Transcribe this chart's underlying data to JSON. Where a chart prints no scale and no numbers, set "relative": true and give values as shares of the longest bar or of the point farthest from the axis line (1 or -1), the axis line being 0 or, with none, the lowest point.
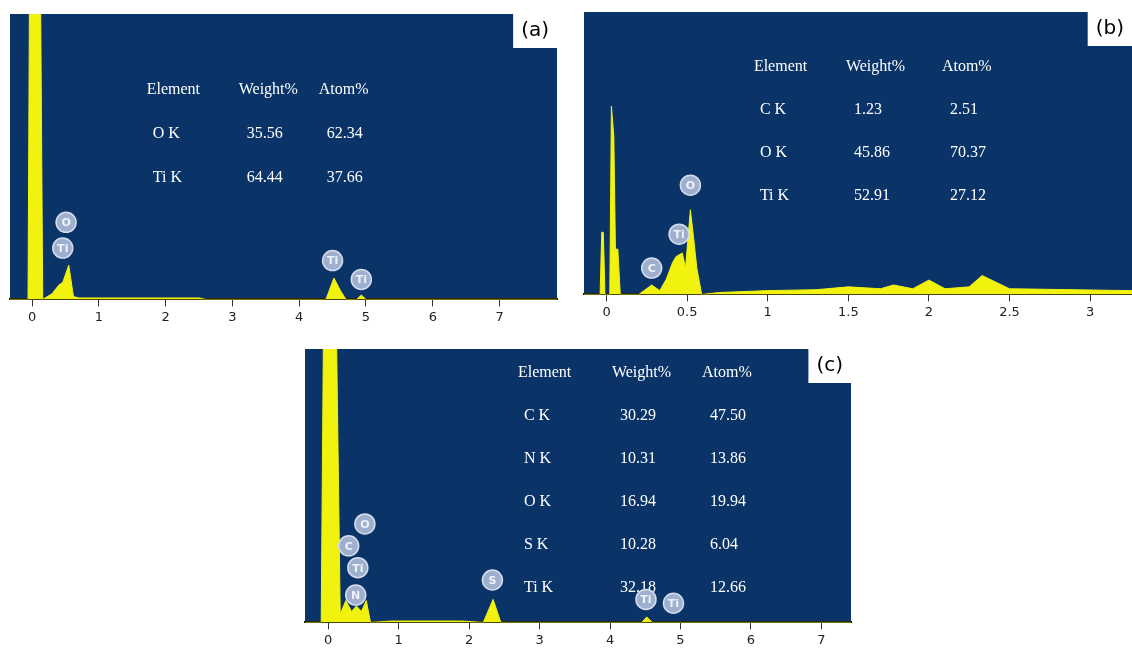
{
  "chart_data": [
    {
      "type": "area",
      "title": "(a)",
      "relative": true,
      "color": "#f2f20f",
      "legend": false,
      "grid": false,
      "x": [
        -0.33,
        -0.06,
        -0.04,
        0.13,
        0.16,
        0.3,
        0.4,
        0.46,
        0.55,
        0.62,
        0.7,
        2.5,
        2.6,
        4.4,
        4.52,
        4.62,
        4.7,
        4.86,
        4.93,
        5.0,
        7.86
      ],
      "values": [
        0,
        0,
        1,
        1,
        0,
        0.02,
        0.05,
        0.06,
        0.12,
        0.01,
        0.005,
        0.005,
        0,
        0,
        0.075,
        0.03,
        0,
        0,
        0.015,
        0,
        0
      ],
      "xlim": [
        -0.33,
        7.86
      ],
      "xticks": [
        0,
        1,
        2,
        3,
        4,
        5,
        6,
        7
      ],
      "annotations": [
        "Element",
        "Weight%",
        "Atom%",
        "O K",
        "35.56",
        "62.34",
        "Ti K",
        "64.44",
        "37.66",
        {
          "text": "O",
          "x": 0.51,
          "y": 0.27
        },
        {
          "text": "Ti",
          "x": 0.46,
          "y": 0.18
        },
        {
          "text": "Ti",
          "x": 4.5,
          "y": 0.136
        },
        {
          "text": "Ti",
          "x": 4.93,
          "y": 0.07
        }
      ]
    },
    {
      "type": "area",
      "title": "(b)",
      "relative": true,
      "color": "#f2f20f",
      "legend": false,
      "grid": false,
      "x": [
        -0.14,
        -0.04,
        -0.03,
        -0.02,
        -0.01,
        0.02,
        0.03,
        0.045,
        0.055,
        0.07,
        0.085,
        0.2,
        0.28,
        0.33,
        0.37,
        0.41,
        0.43,
        0.47,
        0.49,
        0.52,
        0.54,
        0.56,
        0.59,
        0.7,
        1.0,
        1.3,
        1.5,
        1.7,
        1.78,
        1.9,
        2.0,
        2.1,
        2.25,
        2.33,
        2.5,
        3.26
      ],
      "values": [
        0,
        0,
        0.33,
        0.33,
        0,
        0,
        1,
        0.84,
        0.24,
        0.24,
        0,
        0,
        0.05,
        0.02,
        0.08,
        0.17,
        0.2,
        0.22,
        0.14,
        0.45,
        0.3,
        0.14,
        0,
        0.01,
        0.02,
        0.025,
        0.04,
        0.03,
        0.05,
        0.03,
        0.076,
        0.03,
        0.04,
        0.1,
        0.03,
        0.02
      ],
      "xlim": [
        -0.14,
        3.26
      ],
      "xticks": [
        0,
        0.5,
        1,
        1.5,
        2,
        2.5,
        3
      ],
      "annotations": [
        "Element",
        "Weight%",
        "Atom%",
        "C K",
        "1.23",
        "2.51",
        "O K",
        "45.86",
        "70.37",
        "Ti K",
        "52.91",
        "27.12",
        {
          "text": "O",
          "x": 0.52,
          "y": 0.58
        },
        {
          "text": "Ti",
          "x": 0.45,
          "y": 0.32
        },
        {
          "text": "C",
          "x": 0.28,
          "y": 0.14
        }
      ]
    },
    {
      "type": "area",
      "title": "(c)",
      "relative": true,
      "color": "#f2f20f",
      "legend": false,
      "grid": false,
      "x": [
        -0.33,
        -0.1,
        -0.07,
        0.12,
        0.17,
        0.25,
        0.33,
        0.4,
        0.47,
        0.54,
        0.6,
        0.9,
        1.9,
        2.2,
        2.34,
        2.45,
        4.45,
        4.52,
        4.6,
        7.42
      ],
      "values": [
        0,
        0,
        1,
        1,
        0.03,
        0.08,
        0.04,
        0.06,
        0.04,
        0.08,
        0,
        0.005,
        0.005,
        0,
        0.084,
        0,
        0,
        0.02,
        0,
        0
      ],
      "xlim": [
        -0.33,
        7.42
      ],
      "xticks": [
        0,
        1,
        2,
        3,
        4,
        5,
        6,
        7
      ],
      "annotations": [
        "Element",
        "Weight%",
        "Atom%",
        "C K",
        "30.29",
        "47.50",
        "N K",
        "10.31",
        "13.86",
        "O K",
        "16.94",
        "19.94",
        "S K",
        "10.28",
        "6.04",
        "Ti K",
        "32.18",
        "12.66",
        {
          "text": "O",
          "x": 0.52,
          "y": 0.36
        },
        {
          "text": "C",
          "x": 0.29,
          "y": 0.28
        },
        {
          "text": "Ti",
          "x": 0.42,
          "y": 0.2
        },
        {
          "text": "N",
          "x": 0.39,
          "y": 0.1
        },
        {
          "text": "S",
          "x": 2.33,
          "y": 0.155
        },
        {
          "text": "Ti",
          "x": 4.51,
          "y": 0.084
        },
        {
          "text": "Ti",
          "x": 4.9,
          "y": 0.07
        }
      ]
    }
  ]
}
